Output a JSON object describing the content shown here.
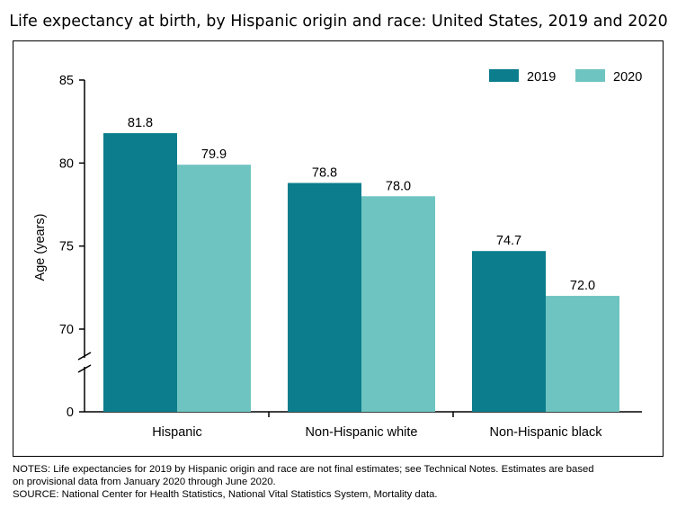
{
  "title": "Life expectancy at birth, by Hispanic origin and race: United States, 2019 and 2020",
  "chart_data": {
    "type": "bar",
    "title": "Life expectancy at birth, by Hispanic origin and race: United States, 2019 and 2020",
    "categories": [
      "Hispanic",
      "Non-Hispanic white",
      "Non-Hispanic black"
    ],
    "series": [
      {
        "name": "2019",
        "color": "#0B7D8C",
        "values": [
          81.8,
          78.8,
          74.7
        ]
      },
      {
        "name": "2020",
        "color": "#6EC4C0",
        "values": [
          79.9,
          78.0,
          72.0
        ]
      }
    ],
    "ylabel": "Age (years)",
    "xlabel": "",
    "y_ticks": [
      0,
      70,
      75,
      80,
      85
    ],
    "ylim": [
      0,
      85
    ],
    "y_axis_break": true,
    "legend_position": "top-right",
    "grid": false
  },
  "notes_line1": "NOTES: Life expectancies for 2019 by Hispanic origin and race are not final estimates; see Technical Notes. Estimates are based",
  "notes_line2": "on provisional data from January 2020 through June 2020.",
  "source": "SOURCE: National Center for Health Statistics, National Vital Statistics System, Mortality data."
}
